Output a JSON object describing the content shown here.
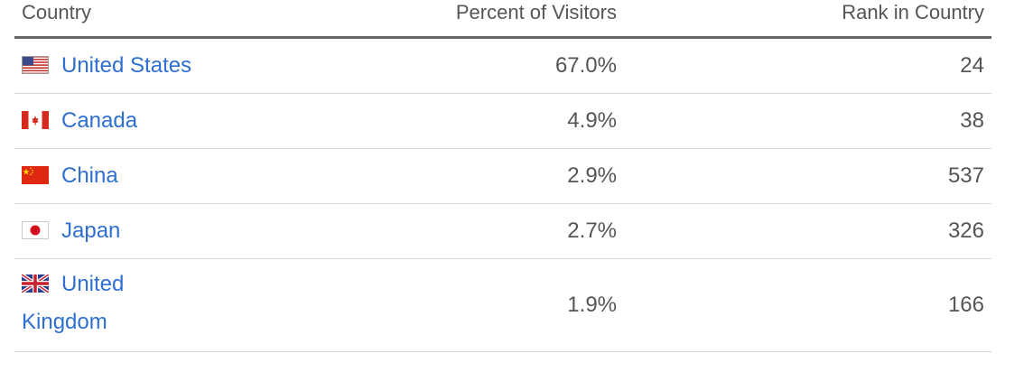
{
  "table": {
    "headers": {
      "country": "Country",
      "percent": "Percent of Visitors",
      "rank": "Rank in Country"
    },
    "rows": [
      {
        "country": "United States",
        "flag": "us-flag-icon",
        "percent": "67.0%",
        "rank": "24"
      },
      {
        "country": "Canada",
        "flag": "ca-flag-icon",
        "percent": "4.9%",
        "rank": "38"
      },
      {
        "country": "China",
        "flag": "cn-flag-icon",
        "percent": "2.9%",
        "rank": "537"
      },
      {
        "country": "Japan",
        "flag": "jp-flag-icon",
        "percent": "2.7%",
        "rank": "326"
      },
      {
        "country": "United Kingdom",
        "flag": "gb-flag-icon",
        "percent": "1.9%",
        "rank": "166"
      }
    ]
  },
  "colors": {
    "link": "#2f6fd1",
    "text": "#555555",
    "header_border": "#666666",
    "row_border": "#d8d8d8"
  }
}
